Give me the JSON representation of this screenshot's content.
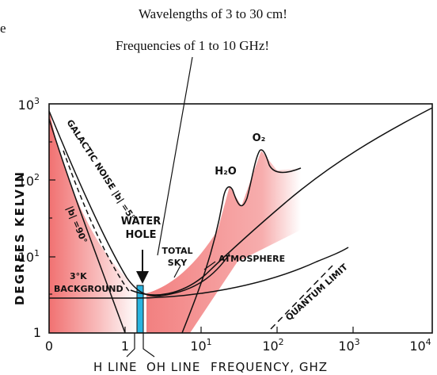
{
  "annotations": {
    "left_fragment": "e",
    "wavelength_note": "Wavelengths of 3 to 30 cm!",
    "frequency_note": "Frequencies of 1 to 10 GHz!"
  },
  "diagram": {
    "y_axis_label": "DEGREES KELVIN",
    "x_axis_label": "FREQUENCY, GHZ",
    "y_ticks": [
      {
        "base": "1",
        "exp": ""
      },
      {
        "base": "10",
        "exp": "1"
      },
      {
        "base": "10",
        "exp": "2"
      },
      {
        "base": "10",
        "exp": "3"
      }
    ],
    "x_ticks": [
      {
        "base": "0",
        "exp": ""
      },
      {
        "base": "1",
        "exp": ""
      },
      {
        "base": "10",
        "exp": "1"
      },
      {
        "base": "10",
        "exp": "2"
      },
      {
        "base": "10",
        "exp": "3"
      },
      {
        "base": "10",
        "exp": "4"
      }
    ],
    "labels": {
      "galactic_noise": "GALACTIC NOISE |b| =5°",
      "b90": "|b| =90°",
      "water_hole_1": "WATER",
      "water_hole_2": "HOLE",
      "total_sky_1": "TOTAL",
      "total_sky_2": "SKY",
      "atmosphere": "ATMOSPHERE",
      "background_1": "3°K",
      "background_2": "BACKGROUND",
      "quantum_limit": "QUANTUM LIMIT",
      "h2o": "H₂O",
      "o2": "O₂",
      "h_line": "H LINE",
      "oh_line": "OH LINE"
    },
    "colors": {
      "shading": "#f06a6a",
      "water_hole_band": "#2ab4e0",
      "line": "#111111"
    }
  }
}
